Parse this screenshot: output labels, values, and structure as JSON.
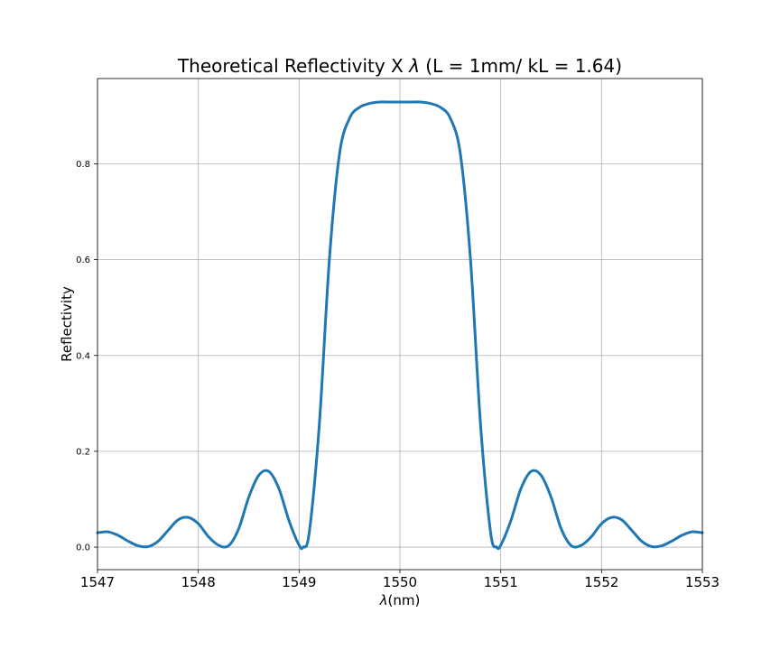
{
  "chart_data": {
    "type": "line",
    "title_prefix": "Theoretical Reflectivity X ",
    "title_symbol": "λ",
    "title_suffix": " (L = 1mm/ kL = 1.64)",
    "xlabel_symbol": "λ",
    "xlabel_suffix": "(nm)",
    "ylabel": "Reflectivity",
    "xlim": [
      1547,
      1553
    ],
    "ylim": [
      -0.047,
      0.978
    ],
    "xticks": [
      1547,
      1548,
      1549,
      1550,
      1551,
      1552,
      1553
    ],
    "xtick_labels": [
      "1547",
      "1548",
      "1549",
      "1550",
      "1551",
      "1552",
      "1553"
    ],
    "yticks": [
      0.0,
      0.2,
      0.4,
      0.6,
      0.8
    ],
    "ytick_labels": [
      "0.0",
      "0.2",
      "0.4",
      "0.6",
      "0.8"
    ],
    "grid": true,
    "series": [
      {
        "color": "#1f77b4",
        "x": [
          1547.0,
          1547.1,
          1547.2,
          1547.3,
          1547.4,
          1547.5,
          1547.6,
          1547.7,
          1547.8,
          1547.9,
          1548.0,
          1548.1,
          1548.2,
          1548.3,
          1548.4,
          1548.5,
          1548.6,
          1548.7,
          1548.8,
          1548.9,
          1549.0,
          1549.04,
          1549.1,
          1549.2,
          1549.3,
          1549.4,
          1549.5,
          1549.6,
          1549.7,
          1549.8,
          1549.9,
          1550.0,
          1550.1,
          1550.2,
          1550.3,
          1550.4,
          1550.5,
          1550.6,
          1550.7,
          1550.8,
          1550.9,
          1550.96,
          1551.0,
          1551.1,
          1551.2,
          1551.3,
          1551.4,
          1551.5,
          1551.6,
          1551.7,
          1551.8,
          1551.9,
          1552.0,
          1552.1,
          1552.2,
          1552.3,
          1552.4,
          1552.5,
          1552.6,
          1552.7,
          1552.8,
          1552.9,
          1553.0
        ],
        "y": [
          0.03,
          0.032,
          0.025,
          0.013,
          0.003,
          0.001,
          0.012,
          0.035,
          0.057,
          0.062,
          0.049,
          0.022,
          0.004,
          0.003,
          0.038,
          0.104,
          0.15,
          0.158,
          0.122,
          0.055,
          0.004,
          0.0,
          0.03,
          0.255,
          0.6,
          0.82,
          0.895,
          0.918,
          0.926,
          0.929,
          0.929,
          0.929,
          0.929,
          0.929,
          0.926,
          0.918,
          0.895,
          0.82,
          0.6,
          0.255,
          0.03,
          0.0,
          0.004,
          0.055,
          0.122,
          0.158,
          0.15,
          0.104,
          0.038,
          0.003,
          0.004,
          0.022,
          0.049,
          0.062,
          0.057,
          0.035,
          0.012,
          0.001,
          0.003,
          0.013,
          0.025,
          0.032,
          0.03
        ]
      }
    ]
  }
}
